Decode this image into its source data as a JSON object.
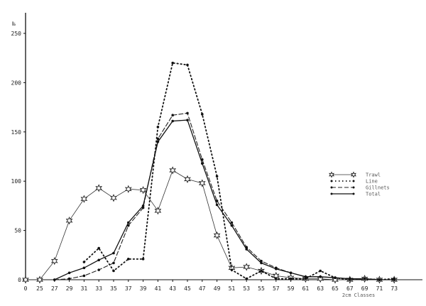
{
  "chart_data": {
    "type": "line",
    "title": "",
    "xlabel": "2cm Classes",
    "ylabel": "‰",
    "ylim": [
      0,
      250
    ],
    "yticks": [
      0,
      50,
      100,
      150,
      200,
      250
    ],
    "categories": [
      "0",
      "25",
      "27",
      "29",
      "31",
      "33",
      "35",
      "37",
      "39",
      "41",
      "43",
      "45",
      "47",
      "49",
      "51",
      "53",
      "55",
      "57",
      "59",
      "61",
      "63",
      "65",
      "67",
      "69",
      "71",
      "73"
    ],
    "grid": false,
    "legend_position": "right",
    "series": [
      {
        "name": "Trawl",
        "style": "star-solid-thin",
        "values": [
          0,
          0,
          19,
          60,
          82,
          93,
          83,
          92,
          91,
          70,
          111,
          102,
          98,
          45,
          12,
          13,
          9,
          4,
          2,
          1,
          1,
          0,
          0,
          1,
          0,
          0
        ]
      },
      {
        "name": "Line",
        "style": "dotted",
        "values": [
          null,
          null,
          null,
          null,
          18,
          32,
          9,
          21,
          21,
          155,
          220,
          218,
          168,
          105,
          10,
          1,
          9,
          1,
          1,
          1,
          9,
          2,
          0,
          1,
          0,
          1
        ]
      },
      {
        "name": "Gillnets",
        "style": "dashed",
        "values": [
          null,
          null,
          0,
          1,
          4,
          10,
          17,
          55,
          73,
          143,
          167,
          169,
          122,
          80,
          58,
          33,
          19,
          12,
          7,
          3,
          3,
          2,
          1,
          1,
          0,
          0
        ]
      },
      {
        "name": "Total",
        "style": "solid",
        "values": [
          null,
          null,
          0,
          7,
          12,
          20,
          27,
          58,
          75,
          140,
          161,
          162,
          118,
          76,
          55,
          31,
          17,
          11,
          7,
          3,
          3,
          2,
          1,
          1,
          0,
          0
        ]
      }
    ]
  },
  "axes": {
    "y_unit": "‰",
    "x_title": "2cm Classes"
  },
  "legend": {
    "items": [
      {
        "label": "Trawl"
      },
      {
        "label": "Line"
      },
      {
        "label": "Gillnets"
      },
      {
        "label": "Total"
      }
    ]
  }
}
